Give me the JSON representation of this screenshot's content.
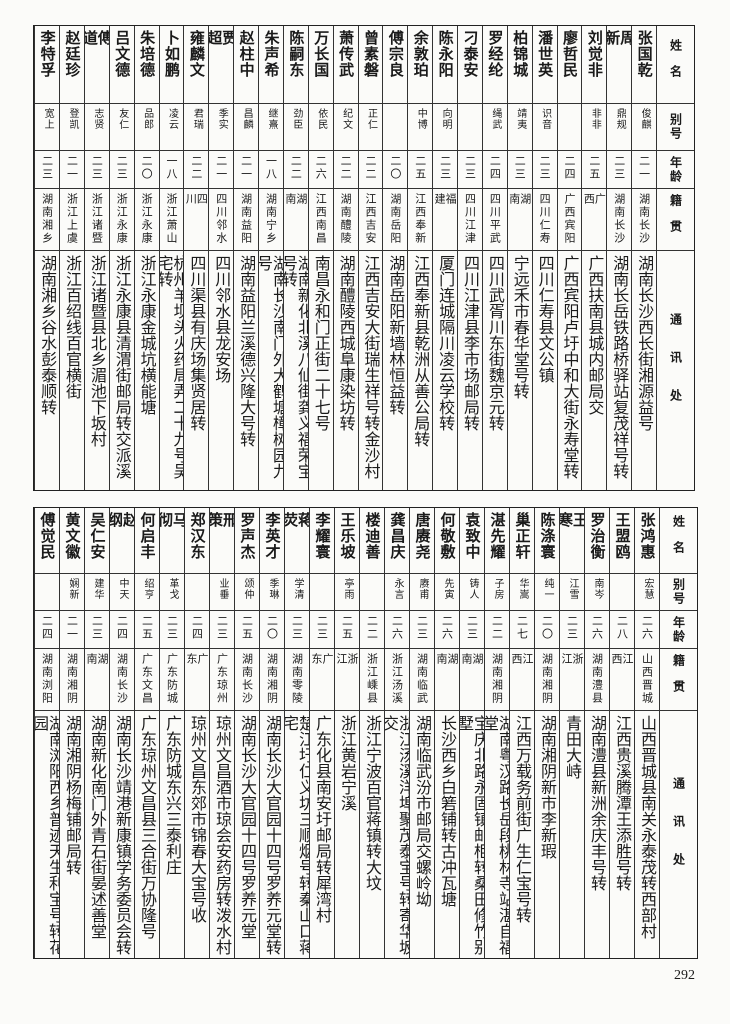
{
  "headers": {
    "name": "姓名",
    "alias": "别号",
    "age": "年龄",
    "origin": "籍贯",
    "address": "通讯处"
  },
  "top_table": [
    {
      "name": "张国乾",
      "alias": "俊麒",
      "age": "二一",
      "origin": "湖南长沙",
      "address": "湖南长沙西长街湘源益号"
    },
    {
      "name": "周新",
      "alias": "鼎规",
      "age": "二三",
      "origin": "湖南长沙",
      "address": "湖南长岳铁路桥驿站复茂祥号转"
    },
    {
      "name": "刘觉非",
      "alias": "非非",
      "age": "二五",
      "origin": "广西",
      "address": "广西扶南县城内邮局交"
    },
    {
      "name": "廖哲民",
      "alias": "",
      "age": "二四",
      "origin": "广西宾阳",
      "address": "广西宾阳卢圩中和大街永寿堂转"
    },
    {
      "name": "潘世英",
      "alias": "识音",
      "age": "二三",
      "origin": "四川仁寿",
      "address": "四川仁寿县文公镇"
    },
    {
      "name": "柏锦城",
      "alias": "靖夷",
      "age": "二三",
      "origin": "湖南",
      "address": "宁远禾市春华堂号转"
    },
    {
      "name": "罗经纶",
      "alias": "绳武",
      "age": "二四",
      "origin": "四川平武",
      "address": "四川武胥川东街魏京元转"
    },
    {
      "name": "刁泰安",
      "alias": "",
      "age": "二三",
      "origin": "四川江津",
      "address": "四川江津县李市场邮局转"
    },
    {
      "name": "陈永阳",
      "alias": "向明",
      "age": "二三",
      "origin": "福建",
      "address": "厦门连城隔川凌云学校转"
    },
    {
      "name": "余敦珀",
      "alias": "中博",
      "age": "二五",
      "origin": "江西奉新",
      "address": "江西奉新县乾洲从善公局转"
    },
    {
      "name": "傅宗良",
      "alias": "",
      "age": "二〇",
      "origin": "湖南岳阳",
      "address": "湖南岳阳新墙林恒益转"
    },
    {
      "name": "曾素磐",
      "alias": "正仁",
      "age": "二二",
      "origin": "江西吉安",
      "address": "江西吉安大街瑞生祥号转金沙村"
    },
    {
      "name": "萧传武",
      "alias": "纪文",
      "age": "二二",
      "origin": "湖南醴陵",
      "address": "湖南醴陵西城阜康染坊转"
    },
    {
      "name": "万长国",
      "alias": "依民",
      "age": "二六",
      "origin": "江西南昌",
      "address": "南昌永和门正街二十七号"
    },
    {
      "name": "陈嗣东",
      "alias": "劲臣",
      "age": "二二",
      "origin": "湖南",
      "address": "湖南新化北溪八仙街龚义福荣宝号转"
    },
    {
      "name": "朱声希",
      "alias": "继熹",
      "age": "一八",
      "origin": "湖南宁乡",
      "address": "湖南长沙南门外大鹤塘樟树园九号"
    },
    {
      "name": "赵柱中",
      "alias": "昌麟",
      "age": "二一",
      "origin": "湖南益阳",
      "address": "湖南益阳兰溪德兴隆大号转"
    },
    {
      "name": "贾超",
      "alias": "季实",
      "age": "二一",
      "origin": "四川邻水",
      "address": "四川邻水县龙安场"
    },
    {
      "name": "雍麟文",
      "alias": "君瑞",
      "age": "二二",
      "origin": "四川",
      "address": "四川渠县有庆场集贤居转"
    },
    {
      "name": "卜如鹏",
      "alias": "凌云",
      "age": "一八",
      "origin": "浙江萧山",
      "address": "杭州羊坝头火药局弄二十九号吴宅转"
    },
    {
      "name": "朱培德",
      "alias": "品郎",
      "age": "二〇",
      "origin": "浙江永康",
      "address": "浙江永康金城坑横能塘"
    },
    {
      "name": "吕文德",
      "alias": "友仁",
      "age": "二三",
      "origin": "浙江永康",
      "address": "浙江永康县清渭街邮局转交派溪"
    },
    {
      "name": "傅道",
      "alias": "志贤",
      "age": "二三",
      "origin": "浙江诸暨",
      "address": "浙江诸暨县北乡湄池下坂村"
    },
    {
      "name": "赵廷珍",
      "alias": "登凯",
      "age": "二一",
      "origin": "浙江上虞",
      "address": "浙江百绍线百官横街"
    },
    {
      "name": "李特孚",
      "alias": "宽上",
      "age": "二三",
      "origin": "湖南湘乡",
      "address": "湖南湘乡谷水彭泰顺转"
    }
  ],
  "bottom_table": [
    {
      "name": "张鸿惠",
      "alias": "宏慧",
      "age": "二六",
      "origin": "山西晋城",
      "address": "山西晋城县南关永泰茂转西部村"
    },
    {
      "name": "王盟鸥",
      "alias": "",
      "age": "二八",
      "origin": "江西",
      "address": "江西贵溪腾潭王添胜号转"
    },
    {
      "name": "罗治衡",
      "alias": "南岑",
      "age": "二六",
      "origin": "湖南澧县",
      "address": "湖南澧县新洲余庆丰号转"
    },
    {
      "name": "王寒",
      "alias": "江雪",
      "age": "二三",
      "origin": "浙江",
      "address": "青田大峙"
    },
    {
      "name": "陈涤寰",
      "alias": "纯一",
      "age": "二〇",
      "origin": "湖南湘阴",
      "address": "湖南湘阴新市李新瑕"
    },
    {
      "name": "巢正轩",
      "alias": "华嵩",
      "age": "二七",
      "origin": "江西",
      "address": "江西万载务前街广生仁宝号转"
    },
    {
      "name": "湛先耀",
      "alias": "子房",
      "age": "二二",
      "origin": "湖南湘阴",
      "address": "湖南粤汉路长岳段桃林寺站湛自福堂"
    },
    {
      "name": "袁致中",
      "alias": "铸人",
      "age": "二三",
      "origin": "湖南",
      "address": "宝庆北路永固镇邮柜转桑田修竹别墅"
    },
    {
      "name": "何敬敷",
      "alias": "先寅",
      "age": "二六",
      "origin": "湖南",
      "address": "长沙西乡白箬铺转古冲瓦塘"
    },
    {
      "name": "唐赓尧",
      "alias": "赓甫",
      "age": "二三",
      "origin": "湖南临武",
      "address": "湖南临武汾市邮局交螺岭坳"
    },
    {
      "name": "龚昌庆",
      "alias": "永言",
      "age": "二六",
      "origin": "浙江汤溪",
      "address": "浙江汤溪洋埠聚茂泰宝号转寄华坂交"
    },
    {
      "name": "楼迪善",
      "alias": "",
      "age": "二二",
      "origin": "浙江嵊县",
      "address": "浙江宁波百官蒋镇转大坟"
    },
    {
      "name": "王乐坡",
      "alias": "亭雨",
      "age": "二五",
      "origin": "浙江",
      "address": "浙江黄岩宁溪"
    },
    {
      "name": "李耀寰",
      "alias": "",
      "age": "二三",
      "origin": "广东",
      "address": "广东化县南安圩邮局转犀湾村"
    },
    {
      "name": "蒋荧",
      "alias": "学清",
      "age": "二三",
      "origin": "湖南零陵",
      "address": "楚江圩仁义坊三顺烟号转秦山口蒋宅"
    },
    {
      "name": "李英才",
      "alias": "季琳",
      "age": "二〇",
      "origin": "湖南湘阴",
      "address": "湖南长沙大官园十四号罗养元堂转"
    },
    {
      "name": "罗声杰",
      "alias": "颂仲",
      "age": "二五",
      "origin": "湖南长沙",
      "address": "湖南长沙大官园十四号罗养元堂"
    },
    {
      "name": "邢策",
      "alias": "业垂",
      "age": "二三",
      "origin": "广东琼州",
      "address": "琼州文昌酒市琼会安药房转泼水村"
    },
    {
      "name": "郑汉东",
      "alias": "",
      "age": "二四",
      "origin": "广东",
      "address": "琼州文昌东郊市锦春大宝号收"
    },
    {
      "name": "马彻",
      "alias": "革戈",
      "age": "二三",
      "origin": "广东防城",
      "address": "广东防城东兴三泰利庄"
    },
    {
      "name": "何启丰",
      "alias": "绍亨",
      "age": "二五",
      "origin": "广东文昌",
      "address": "广东琼州文昌县三合街万协隆号"
    },
    {
      "name": "赵纲",
      "alias": "中天",
      "age": "二四",
      "origin": "湖南长沙",
      "address": "湖南长沙靖港新康镇学务委员会转"
    },
    {
      "name": "吴仁安",
      "alias": "建华",
      "age": "二三",
      "origin": "湖南",
      "address": "湖南新化南门外青石街晏述善堂"
    },
    {
      "name": "黄文徽",
      "alias": "娴新",
      "age": "二一",
      "origin": "湖南湘阴",
      "address": "湖南湘阴杨梅铺邮局转"
    },
    {
      "name": "傅觉民",
      "alias": "",
      "age": "二四",
      "origin": "湖南浏阳",
      "address": "湖南浏阳西乡普迹天生利宝号转花园"
    }
  ],
  "page_number": "292"
}
